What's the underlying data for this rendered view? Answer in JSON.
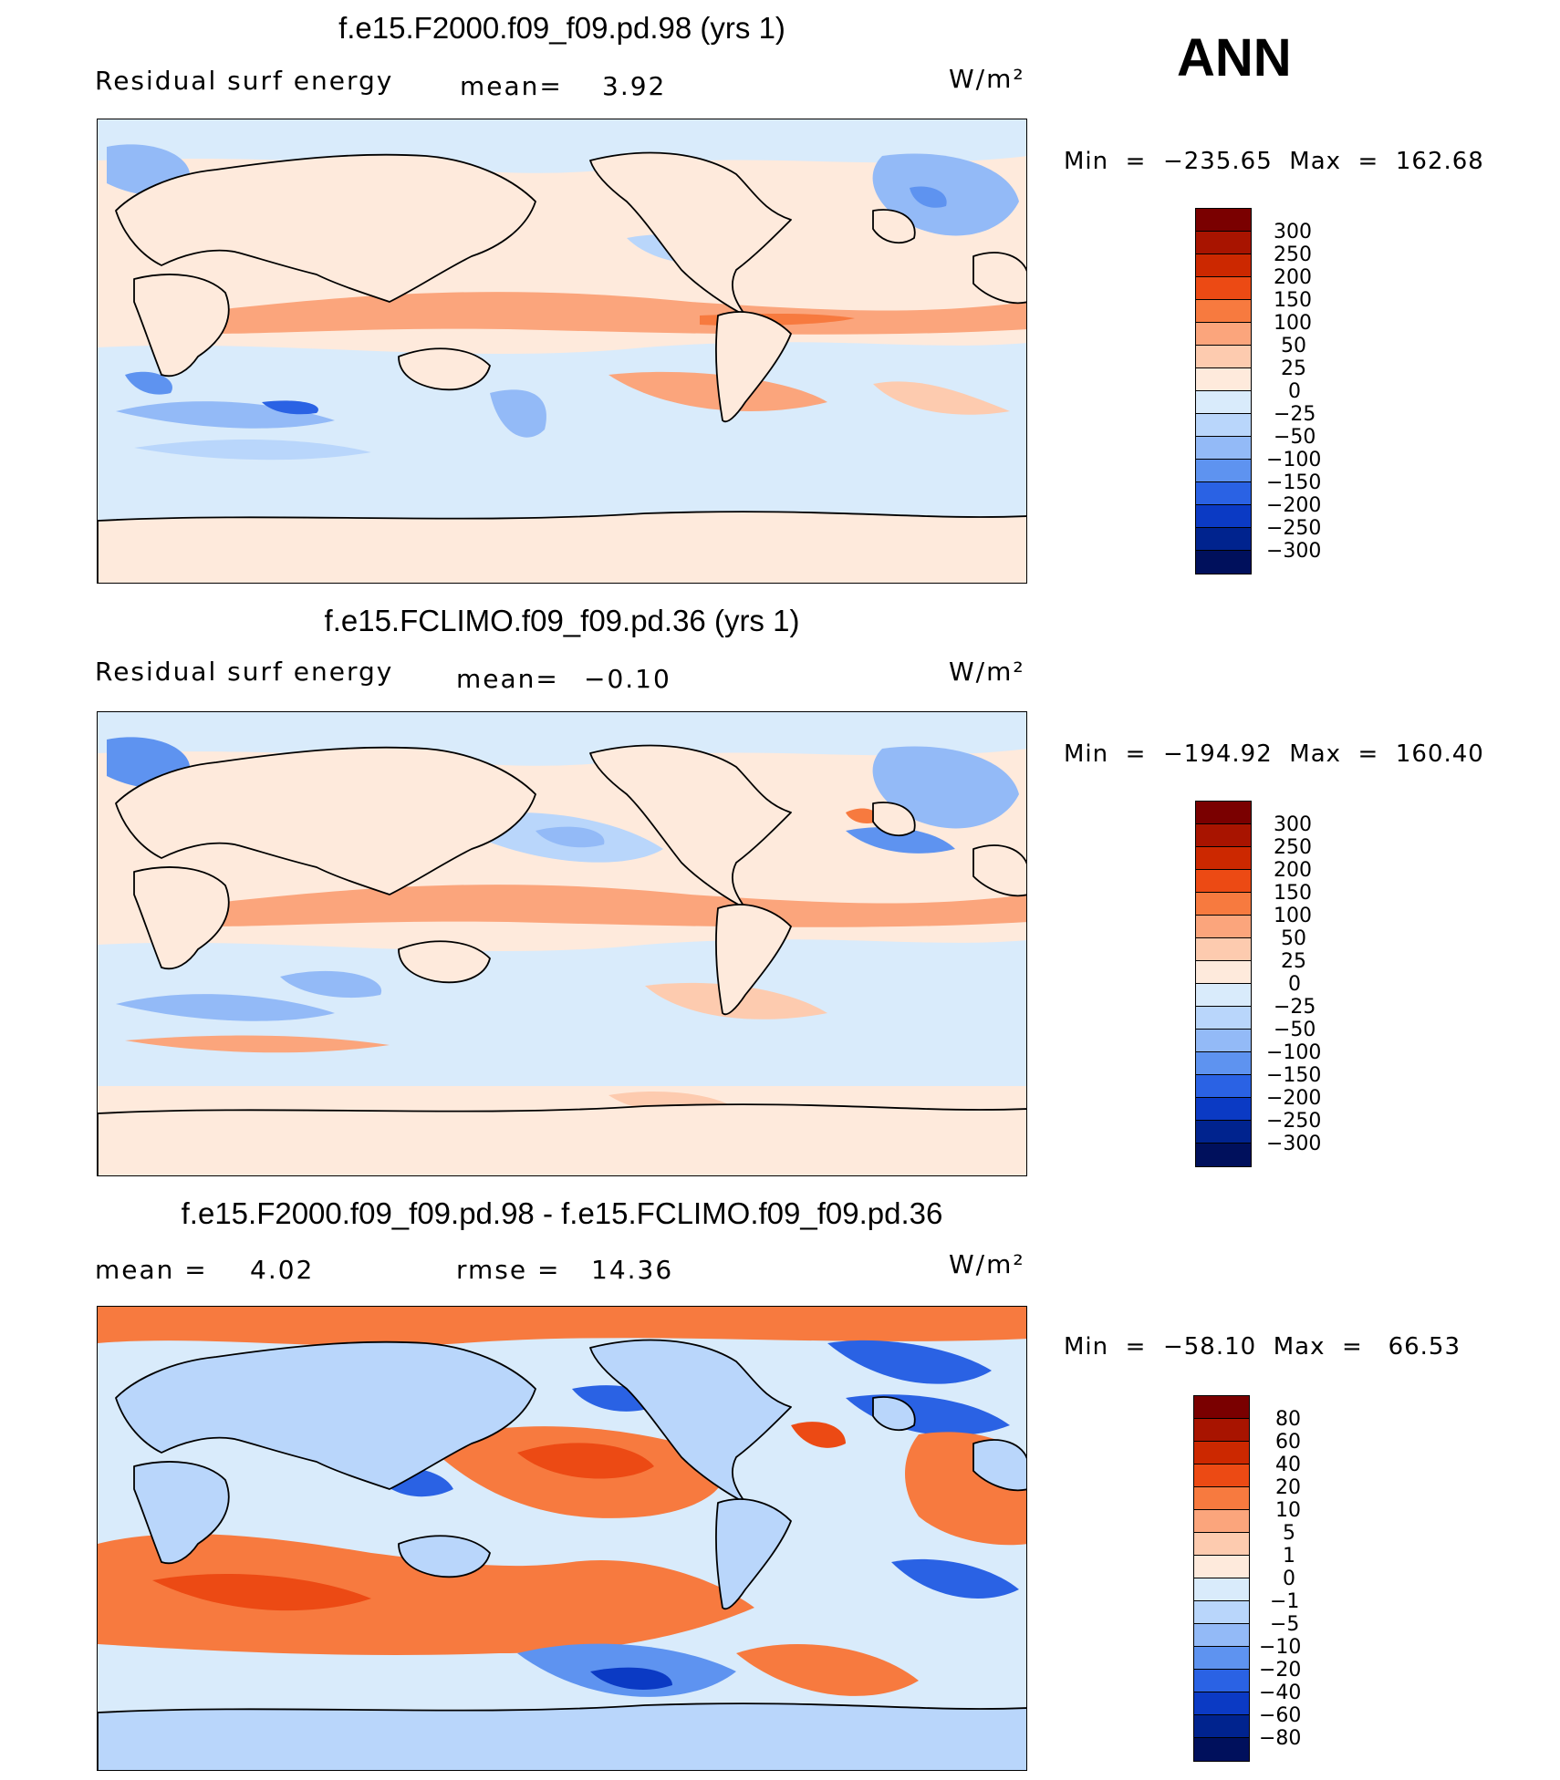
{
  "header": {
    "season": "ANN"
  },
  "panels": [
    {
      "title": "f.e15.F2000.f09_f09.pd.98 (yrs 1)",
      "left_label": "Residual surf energy",
      "center_label": "mean=",
      "center_value": "3.92",
      "units": "W/m²",
      "minmax": "Min  =  −235.65  Max  =  162.68",
      "colorbar_labels": [
        "300",
        "250",
        "200",
        "150",
        "100",
        "50",
        "25",
        "0",
        "−25",
        "−50",
        "−100",
        "−150",
        "−200",
        "−250",
        "−300"
      ]
    },
    {
      "title": "f.e15.FCLIMO.f09_f09.pd.36 (yrs 1)",
      "left_label": "Residual surf energy",
      "center_label": "mean=",
      "center_value": "−0.10",
      "units": "W/m²",
      "minmax": "Min  =  −194.92  Max  =  160.40",
      "colorbar_labels": [
        "300",
        "250",
        "200",
        "150",
        "100",
        "50",
        "25",
        "0",
        "−25",
        "−50",
        "−100",
        "−150",
        "−200",
        "−250",
        "−300"
      ]
    },
    {
      "title": "f.e15.F2000.f09_f09.pd.98 - f.e15.FCLIMO.f09_f09.pd.36",
      "left_label": "mean  =",
      "left_value": "4.02",
      "center_label": "rmse  =",
      "center_value": "14.36",
      "units": "W/m²",
      "minmax": "Min  =  −58.10  Max  =   66.53",
      "colorbar_labels": [
        "80",
        "60",
        "40",
        "20",
        "10",
        "5",
        "1",
        "0",
        "−1",
        "−5",
        "−10",
        "−20",
        "−40",
        "−60",
        "−80"
      ]
    }
  ],
  "colors": {
    "scale": [
      "#7a0000",
      "#a81400",
      "#cc2800",
      "#ec4a14",
      "#f77a3f",
      "#fba57c",
      "#fdcbaf",
      "#feeadc",
      "#d9ebfb",
      "#b9d6fb",
      "#93baf7",
      "#5e93f0",
      "#2a62e4",
      "#0b3ac4",
      "#00238e",
      "#00105c"
    ]
  }
}
